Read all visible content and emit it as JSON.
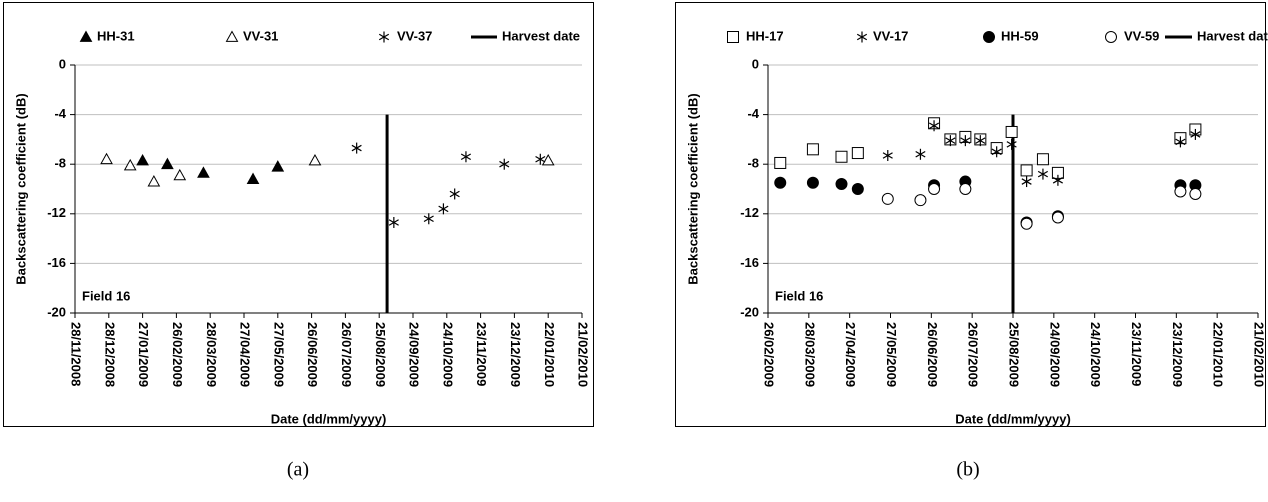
{
  "chart_data": [
    {
      "type": "scatter",
      "caption": "(a)",
      "xlabel": "Date (dd/mm/yyyy)",
      "ylabel": "Backscattering coefficient (dB)",
      "annotation": "Field 16",
      "xlim": [
        "28/11/2008",
        "21/02/2010"
      ],
      "xticks": [
        "28/11/2008",
        "28/12/2008",
        "27/01/2009",
        "26/02/2009",
        "28/03/2009",
        "27/04/2009",
        "27/05/2009",
        "26/06/2009",
        "26/07/2009",
        "25/08/2009",
        "24/09/2009",
        "24/10/2009",
        "23/11/2009",
        "23/12/2009",
        "22/01/2010",
        "21/02/2010"
      ],
      "ylim": [
        -20,
        0
      ],
      "yticks": [
        0,
        -4,
        -8,
        -12,
        -16,
        -20
      ],
      "grid": true,
      "series": [
        {
          "name": "HH-31",
          "marker": "triangle-filled",
          "color": "#000000",
          "x": [
            "27/01/2009",
            "18/02/2009",
            "22/03/2009",
            "05/05/2009",
            "27/05/2009"
          ],
          "values": [
            -7.7,
            -8.0,
            -8.7,
            -9.2,
            -8.2
          ]
        },
        {
          "name": "VV-31",
          "marker": "triangle-open",
          "color": "#000000",
          "x": [
            "26/12/2008",
            "16/01/2009",
            "06/02/2009",
            "01/03/2009",
            "29/06/2009",
            "22/01/2010"
          ],
          "values": [
            -7.6,
            -8.1,
            -9.4,
            -8.9,
            -7.7,
            -7.7
          ]
        },
        {
          "name": "VV-37",
          "marker": "star",
          "color": "#000000",
          "x": [
            "05/08/2009",
            "07/09/2009",
            "08/10/2009",
            "21/10/2009",
            "31/10/2009",
            "10/11/2009",
            "14/12/2009",
            "15/01/2010"
          ],
          "values": [
            -6.7,
            -12.7,
            -12.4,
            -11.6,
            -10.4,
            -7.4,
            -8.0,
            -7.6
          ]
        }
      ],
      "vline": {
        "name": "Harvest date",
        "x": "01/09/2009",
        "color": "#000000"
      }
    },
    {
      "type": "scatter",
      "caption": "(b)",
      "xlabel": "Date (dd/mm/yyyy)",
      "ylabel": "Backscattering coefficient (dB)",
      "annotation": "Field 16",
      "xlim": [
        "26/02/2009",
        "21/02/2010"
      ],
      "xticks": [
        "26/02/2009",
        "28/03/2009",
        "27/04/2009",
        "27/05/2009",
        "26/06/2009",
        "26/07/2009",
        "25/08/2009",
        "24/09/2009",
        "24/10/2009",
        "23/11/2009",
        "23/12/2009",
        "22/01/2010",
        "21/02/2010"
      ],
      "ylim": [
        -20,
        0
      ],
      "yticks": [
        0,
        -4,
        -8,
        -12,
        -16,
        -20
      ],
      "grid": true,
      "series": [
        {
          "name": "HH-17",
          "marker": "square-open",
          "color": "#000000",
          "x": [
            "07/03/2009",
            "31/03/2009",
            "21/04/2009",
            "03/05/2009",
            "28/06/2009",
            "10/07/2009",
            "21/07/2009",
            "01/08/2009",
            "13/08/2009",
            "24/08/2009",
            "04/09/2009",
            "16/09/2009",
            "27/09/2009",
            "26/12/2009",
            "06/01/2010"
          ],
          "values": [
            -7.9,
            -6.8,
            -7.4,
            -7.1,
            -4.7,
            -6.0,
            -5.8,
            -6.0,
            -6.7,
            -5.4,
            -8.5,
            -7.6,
            -8.7,
            -5.9,
            -5.2
          ]
        },
        {
          "name": "VV-17",
          "marker": "star",
          "color": "#000000",
          "x": [
            "25/05/2009",
            "18/06/2009",
            "28/06/2009",
            "10/07/2009",
            "21/07/2009",
            "01/08/2009",
            "13/08/2009",
            "24/08/2009",
            "04/09/2009",
            "16/09/2009",
            "27/09/2009",
            "26/12/2009",
            "06/01/2010"
          ],
          "values": [
            -7.3,
            -7.2,
            -4.9,
            -6.1,
            -6.1,
            -6.1,
            -7.0,
            -6.4,
            -9.4,
            -8.8,
            -9.3,
            -6.2,
            -5.6
          ]
        },
        {
          "name": "HH-59",
          "marker": "circle-filled",
          "color": "#000000",
          "x": [
            "07/03/2009",
            "31/03/2009",
            "21/04/2009",
            "03/05/2009",
            "28/06/2009",
            "21/07/2009",
            "04/09/2009",
            "27/09/2009",
            "26/12/2009",
            "06/01/2010"
          ],
          "values": [
            -9.5,
            -9.5,
            -9.6,
            -10.0,
            -9.7,
            -9.4,
            -12.7,
            -12.2,
            -9.7,
            -9.7
          ]
        },
        {
          "name": "VV-59",
          "marker": "circle-open",
          "color": "#000000",
          "x": [
            "25/05/2009",
            "18/06/2009",
            "28/06/2009",
            "21/07/2009",
            "04/09/2009",
            "27/09/2009",
            "26/12/2009",
            "06/01/2010"
          ],
          "values": [
            -10.8,
            -10.9,
            -10.0,
            -10.0,
            -12.8,
            -12.3,
            -10.2,
            -10.4
          ]
        }
      ],
      "vline": {
        "name": "Harvest date",
        "x": "25/08/2009",
        "color": "#000000"
      }
    }
  ]
}
